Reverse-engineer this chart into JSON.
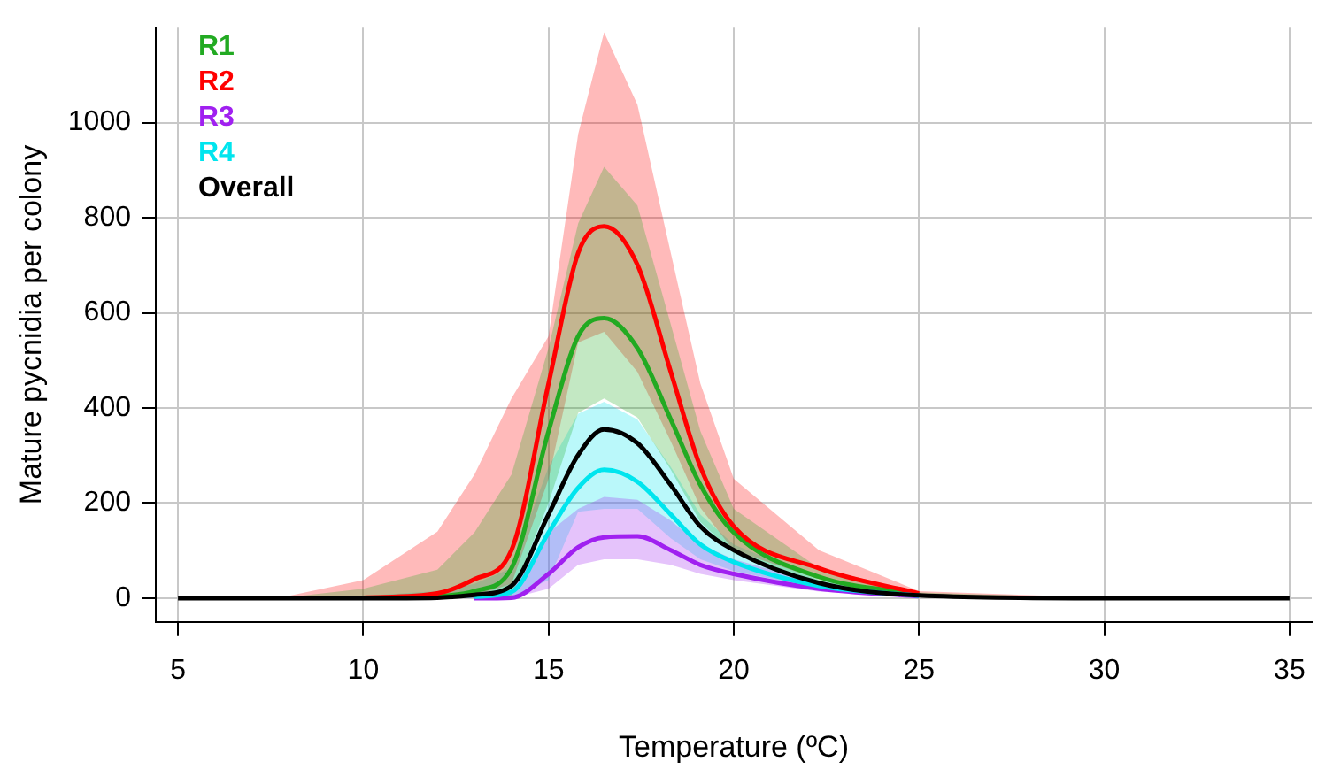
{
  "chart_data": {
    "type": "line",
    "xlabel": "Temperature (ºC)",
    "ylabel": "Mature pycnidia per colony",
    "x": [
      5,
      8,
      10,
      12,
      13,
      14,
      15,
      15.8,
      16.5,
      17.4,
      18.3,
      19.1,
      20,
      22.3,
      25,
      30,
      35
    ],
    "series": [
      {
        "name": "R1",
        "color": "#22aa22",
        "values": [
          null,
          null,
          null,
          3,
          15,
          63,
          351,
          551,
          589,
          526,
          376,
          238,
          138,
          45,
          8,
          null,
          null
        ],
        "lower": [
          0,
          0,
          0,
          0,
          1,
          5,
          200,
          390,
          420,
          380,
          270,
          160,
          95,
          30,
          4,
          0,
          0
        ],
        "upper": [
          0,
          2,
          20,
          60,
          138,
          260,
          526,
          788,
          907,
          826,
          576,
          351,
          188,
          63,
          12,
          0,
          0
        ]
      },
      {
        "name": "R2",
        "color": "#ff0000",
        "values": [
          null,
          null,
          1,
          10,
          40,
          101,
          451,
          726,
          782,
          701,
          476,
          276,
          151,
          63,
          10,
          null,
          null
        ],
        "lower": [
          0,
          0,
          0,
          0,
          5,
          30,
          250,
          538,
          560,
          476,
          330,
          190,
          100,
          40,
          5,
          0,
          0
        ],
        "upper": [
          0,
          5,
          38,
          140,
          260,
          420,
          551,
          976,
          1190,
          1038,
          726,
          451,
          251,
          101,
          15,
          1,
          0
        ]
      },
      {
        "name": "R3",
        "color": "#a020f0",
        "values": [
          null,
          null,
          null,
          null,
          0,
          1,
          51,
          107,
          128,
          130,
          101,
          70,
          51,
          20,
          4,
          null,
          null
        ],
        "lower": [
          0,
          0,
          0,
          0,
          0,
          0,
          20,
          70,
          82,
          82,
          70,
          51,
          38,
          14,
          2,
          0,
          0
        ],
        "upper": [
          0,
          0,
          0,
          0,
          3,
          15,
          138,
          188,
          213,
          207,
          163,
          113,
          82,
          32,
          6,
          0,
          0
        ]
      },
      {
        "name": "R4",
        "color": "#00e5ee",
        "values": [
          null,
          null,
          null,
          null,
          3,
          13,
          138,
          232,
          270,
          245,
          176,
          113,
          76,
          26,
          5,
          null,
          null
        ],
        "lower": [
          0,
          0,
          0,
          0,
          0,
          2,
          38,
          182,
          188,
          188,
          126,
          82,
          57,
          20,
          3,
          0,
          0
        ],
        "upper": [
          0,
          0,
          5,
          15,
          30,
          63,
          276,
          388,
          413,
          376,
          276,
          176,
          113,
          38,
          8,
          0,
          0
        ]
      },
      {
        "name": "Overall",
        "color": "#000000",
        "values": [
          0,
          0,
          0,
          1,
          7,
          26,
          176,
          301,
          355,
          326,
          238,
          151,
          101,
          32,
          6,
          0,
          0
        ]
      }
    ],
    "xlim": [
      4.4,
      35.6
    ],
    "xticks": [
      5,
      10,
      15,
      20,
      25,
      30,
      35
    ],
    "ylim": [
      -50,
      1200
    ],
    "yticks": [
      0,
      200,
      400,
      600,
      800,
      1000
    ],
    "grid": true,
    "legend": "top left",
    "marker": "none",
    "line_style": "solid"
  }
}
